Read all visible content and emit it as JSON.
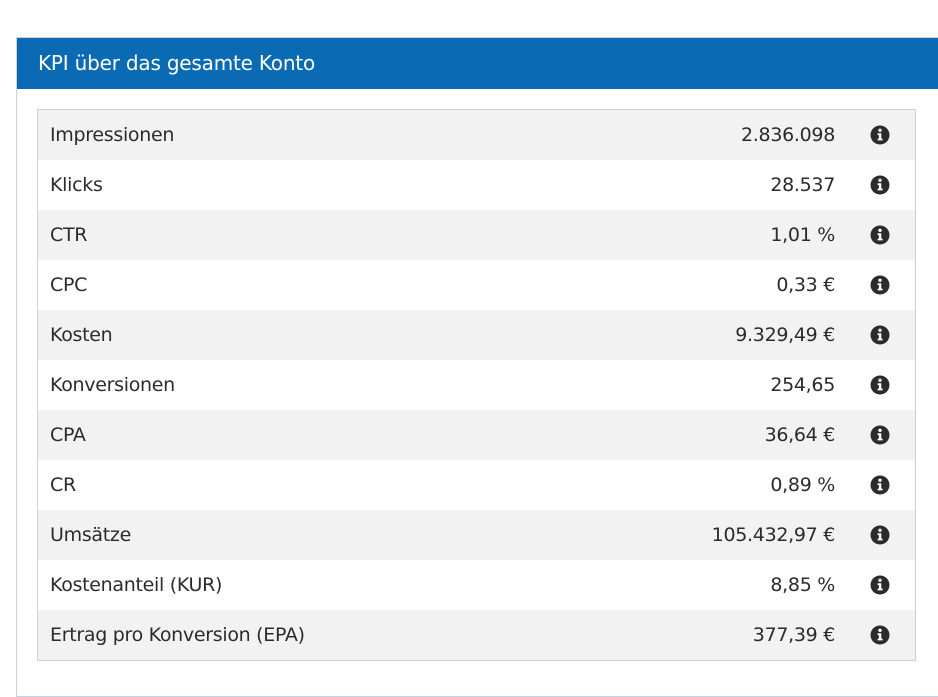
{
  "panel": {
    "title": "KPI über das gesamte Konto"
  },
  "kpis": [
    {
      "label": "Impressionen",
      "value": "2.836.098",
      "icon": "info-icon"
    },
    {
      "label": "Klicks",
      "value": "28.537",
      "icon": "info-icon"
    },
    {
      "label": "CTR",
      "value": "1,01 %",
      "icon": "info-icon"
    },
    {
      "label": "CPC",
      "value": "0,33 €",
      "icon": "info-icon"
    },
    {
      "label": "Kosten",
      "value": "9.329,49 €",
      "icon": "info-icon"
    },
    {
      "label": "Konversionen",
      "value": "254,65",
      "icon": "info-icon"
    },
    {
      "label": "CPA",
      "value": "36,64 €",
      "icon": "info-icon"
    },
    {
      "label": "CR",
      "value": "0,89 %",
      "icon": "info-icon"
    },
    {
      "label": "Umsätze",
      "value": "105.432,97 €",
      "icon": "info-icon"
    },
    {
      "label": "Kostenanteil (KUR)",
      "value": "8,85 %",
      "icon": "info-icon"
    },
    {
      "label": "Ertrag pro Konversion (EPA)",
      "value": "377,39 €",
      "icon": "info-icon"
    }
  ],
  "colors": {
    "header_bg": "#0a6ab3",
    "icon": "#2b2b2b"
  }
}
